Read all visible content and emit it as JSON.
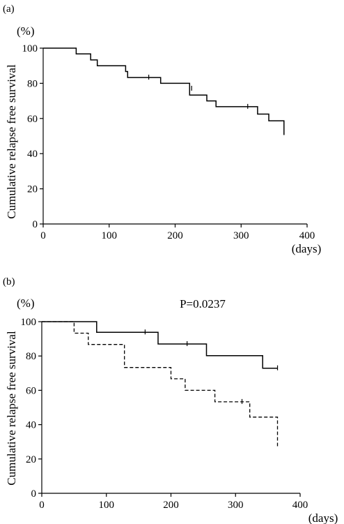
{
  "chart_data": [
    {
      "type": "line",
      "panel_label": "(a)",
      "ylabel": "Cumulative relapse free survival",
      "y_unit": "(%)",
      "x_unit": "(days)",
      "xlim": [
        0,
        400
      ],
      "ylim": [
        0,
        100
      ],
      "x_ticks": [
        0,
        100,
        200,
        300,
        400
      ],
      "y_ticks": [
        0,
        20,
        40,
        60,
        80,
        100
      ],
      "annotation": "",
      "series": [
        {
          "style": "solid",
          "x": [
            0,
            50,
            50,
            72,
            72,
            82,
            82,
            125,
            125,
            128,
            128,
            178,
            178,
            222,
            222,
            248,
            248,
            262,
            262,
            325,
            325,
            342,
            342,
            365,
            365
          ],
          "y": [
            100,
            100,
            96.7,
            96.7,
            93.3,
            93.3,
            90.0,
            90.0,
            86.7,
            86.7,
            83.3,
            83.3,
            80.0,
            80.0,
            73.3,
            73.3,
            70.0,
            70.0,
            66.7,
            66.7,
            62.5,
            62.5,
            58.7,
            58.7,
            50.6
          ],
          "censored": [
            [
              160,
              83.3
            ],
            [
              225,
              77
            ],
            [
              310,
              66.7
            ]
          ]
        }
      ]
    },
    {
      "type": "line",
      "panel_label": "(b)",
      "ylabel": "Cumulative relapse free survival",
      "y_unit": "(%)",
      "x_unit": "(days)",
      "xlim": [
        0,
        400
      ],
      "ylim": [
        0,
        100
      ],
      "x_ticks": [
        0,
        100,
        200,
        300,
        400
      ],
      "y_ticks": [
        0,
        20,
        40,
        60,
        80,
        100
      ],
      "annotation": "P=0.0237",
      "series": [
        {
          "style": "solid",
          "x": [
            0,
            85,
            85,
            180,
            180,
            255,
            255,
            342,
            342,
            365
          ],
          "y": [
            100,
            100,
            93.8,
            93.8,
            87.0,
            87.0,
            80.2,
            80.2,
            72.9,
            72.9
          ],
          "censored": [
            [
              160,
              93.8
            ],
            [
              225,
              87.0
            ],
            [
              365,
              72.9
            ]
          ]
        },
        {
          "style": "dashed",
          "x": [
            0,
            50,
            50,
            72,
            72,
            128,
            128,
            200,
            200,
            222,
            222,
            268,
            268,
            322,
            322,
            365,
            365
          ],
          "y": [
            100,
            100,
            93.3,
            93.3,
            86.7,
            86.7,
            73.3,
            73.3,
            66.7,
            66.7,
            60.0,
            60.0,
            53.3,
            53.3,
            44.4,
            44.4,
            26.7
          ],
          "censored": [
            [
              310,
              53.3
            ]
          ]
        }
      ]
    }
  ]
}
